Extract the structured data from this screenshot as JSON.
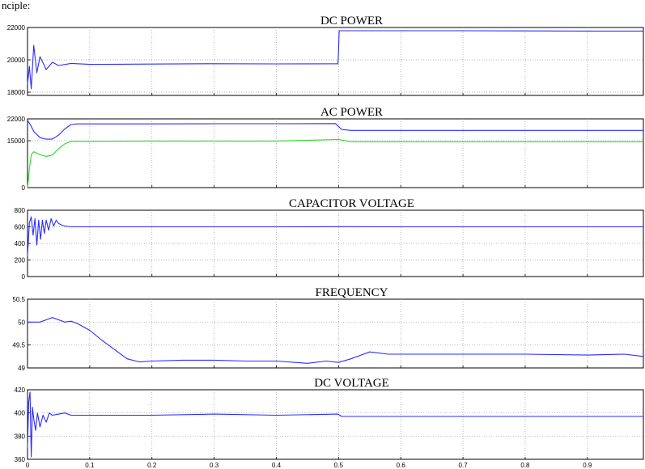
{
  "header_text": "nciple:",
  "colors": {
    "blue": "#2b2bff",
    "green": "#28d828"
  },
  "chart_data": [
    {
      "type": "line",
      "title": "DC POWER",
      "x_range": [
        0,
        0.99
      ],
      "ylim": [
        17800,
        22000
      ],
      "yticks": [
        18000,
        20000,
        22000
      ],
      "grid": true,
      "series": [
        {
          "color": "#2b2bff",
          "x": [
            0,
            0.003,
            0.006,
            0.01,
            0.015,
            0.02,
            0.03,
            0.04,
            0.05,
            0.07,
            0.1,
            0.2,
            0.3,
            0.4,
            0.499,
            0.5,
            0.501,
            0.6,
            0.7,
            0.8,
            0.9,
            0.99
          ],
          "y": [
            18500,
            19600,
            18200,
            20900,
            19200,
            20200,
            19400,
            19850,
            19650,
            19780,
            19720,
            19740,
            19760,
            19750,
            19760,
            20500,
            21800,
            21800,
            21800,
            21790,
            21780,
            21780
          ]
        }
      ]
    },
    {
      "type": "line",
      "title": "AC POWER",
      "x_range": [
        0,
        0.99
      ],
      "ylim": [
        0,
        22000
      ],
      "yticks": [
        0,
        15000,
        22000
      ],
      "grid": true,
      "series": [
        {
          "color": "#2b2bff",
          "x": [
            0,
            0.005,
            0.01,
            0.02,
            0.03,
            0.04,
            0.05,
            0.06,
            0.07,
            0.08,
            0.1,
            0.2,
            0.3,
            0.4,
            0.495,
            0.505,
            0.52,
            0.6,
            0.7,
            0.8,
            0.9,
            0.99
          ],
          "y": [
            21500,
            20000,
            18000,
            16000,
            15500,
            15500,
            16800,
            18800,
            20200,
            20400,
            20400,
            20400,
            20450,
            20450,
            20500,
            18600,
            18300,
            18300,
            18300,
            18300,
            18300,
            18300
          ]
        },
        {
          "color": "#28d828",
          "x": [
            0,
            0.003,
            0.006,
            0.01,
            0.02,
            0.03,
            0.04,
            0.05,
            0.06,
            0.07,
            0.08,
            0.1,
            0.2,
            0.3,
            0.4,
            0.5,
            0.52,
            0.6,
            0.7,
            0.8,
            0.9,
            0.99
          ],
          "y": [
            0,
            6000,
            10500,
            11500,
            10500,
            10000,
            10400,
            12500,
            14000,
            14800,
            14800,
            14800,
            14900,
            14900,
            14900,
            15400,
            14700,
            14700,
            14700,
            14700,
            14700,
            14700
          ]
        }
      ]
    },
    {
      "type": "line",
      "title": "CAPACITOR VOLTAGE",
      "x_range": [
        0,
        0.99
      ],
      "ylim": [
        0,
        800
      ],
      "yticks": [
        0,
        200,
        400,
        600,
        800
      ],
      "grid": true,
      "series": [
        {
          "color": "#2b2bff",
          "x": [
            0,
            0.003,
            0.006,
            0.009,
            0.012,
            0.015,
            0.018,
            0.021,
            0.024,
            0.027,
            0.03,
            0.034,
            0.038,
            0.042,
            0.046,
            0.05,
            0.055,
            0.06,
            0.07,
            0.1,
            0.2,
            0.3,
            0.4,
            0.5,
            0.6,
            0.7,
            0.8,
            0.9,
            0.99
          ],
          "y": [
            250,
            650,
            720,
            500,
            700,
            380,
            680,
            450,
            680,
            520,
            680,
            560,
            700,
            610,
            680,
            640,
            620,
            610,
            600,
            600,
            600,
            600,
            600,
            602,
            600,
            600,
            600,
            600,
            600
          ]
        }
      ]
    },
    {
      "type": "line",
      "title": "FREQUENCY",
      "x_range": [
        0,
        0.99
      ],
      "ylim": [
        49,
        50.5
      ],
      "yticks": [
        49,
        49.5,
        50,
        50.5
      ],
      "grid": true,
      "series": [
        {
          "color": "#2b2bff",
          "x": [
            0,
            0.01,
            0.02,
            0.03,
            0.04,
            0.05,
            0.06,
            0.07,
            0.08,
            0.1,
            0.12,
            0.14,
            0.16,
            0.18,
            0.2,
            0.25,
            0.3,
            0.35,
            0.4,
            0.45,
            0.48,
            0.5,
            0.52,
            0.54,
            0.55,
            0.58,
            0.6,
            0.7,
            0.8,
            0.9,
            0.96,
            0.99
          ],
          "y": [
            50,
            50,
            50,
            50.05,
            50.1,
            50.05,
            50,
            50.02,
            49.97,
            49.82,
            49.6,
            49.4,
            49.2,
            49.13,
            49.15,
            49.17,
            49.17,
            49.15,
            49.15,
            49.1,
            49.15,
            49.12,
            49.2,
            49.3,
            49.35,
            49.3,
            49.3,
            49.3,
            49.3,
            49.28,
            49.3,
            49.25
          ]
        }
      ]
    },
    {
      "type": "line",
      "title": "DC VOLTAGE",
      "x_range": [
        0,
        0.99
      ],
      "ylim": [
        360,
        420
      ],
      "yticks": [
        360,
        380,
        400,
        420
      ],
      "xticks": [
        0,
        0.1,
        0.2,
        0.3,
        0.4,
        0.5,
        0.6,
        0.7,
        0.8,
        0.9
      ],
      "grid": true,
      "series": [
        {
          "color": "#2b2bff",
          "x": [
            0,
            0.002,
            0.004,
            0.006,
            0.008,
            0.01,
            0.013,
            0.016,
            0.02,
            0.025,
            0.03,
            0.035,
            0.04,
            0.05,
            0.06,
            0.07,
            0.1,
            0.2,
            0.3,
            0.4,
            0.499,
            0.505,
            0.6,
            0.7,
            0.8,
            0.9,
            0.99
          ],
          "y": [
            370,
            410,
            418,
            362,
            405,
            395,
            385,
            400,
            388,
            398,
            392,
            400,
            398,
            399,
            400,
            398,
            398,
            398,
            399,
            398,
            399,
            397,
            397,
            397,
            397,
            397,
            397
          ]
        }
      ]
    }
  ]
}
